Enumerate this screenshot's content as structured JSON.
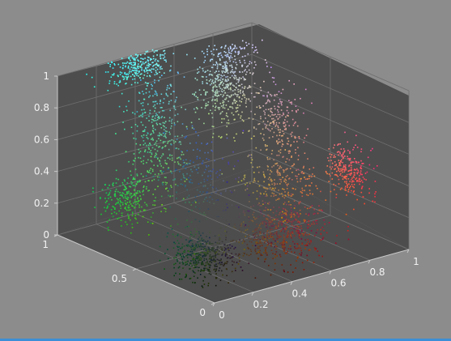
{
  "chart_data": {
    "type": "scatter",
    "title": "",
    "xlabel": "",
    "ylabel": "",
    "zlabel": "",
    "projection": "3d",
    "grid": true,
    "background_color": "#8c8c8c",
    "axes_color": "#4d4d4d",
    "xlim": [
      0,
      1
    ],
    "ylim": [
      0,
      1
    ],
    "zlim": [
      0,
      1
    ],
    "x_ticks": [
      {
        "value": 0,
        "label": "0"
      },
      {
        "value": 0.2,
        "label": "0.2"
      },
      {
        "value": 0.4,
        "label": "0.4"
      },
      {
        "value": 0.6,
        "label": "0.6"
      },
      {
        "value": 0.8,
        "label": "0.8"
      },
      {
        "value": 1,
        "label": "1"
      }
    ],
    "y_ticks": [
      {
        "value": 0,
        "label": "0"
      },
      {
        "value": 0.5,
        "label": "0.5"
      },
      {
        "value": 1,
        "label": "1"
      }
    ],
    "z_ticks": [
      {
        "value": 0,
        "label": "0"
      },
      {
        "value": 0.2,
        "label": "0.2"
      },
      {
        "value": 0.4,
        "label": "0.4"
      },
      {
        "value": 0.6,
        "label": "0.6"
      },
      {
        "value": 0.8,
        "label": "0.8"
      },
      {
        "value": 1,
        "label": "1"
      }
    ],
    "point_colors": "each point coloured by its own (x, y, z) = (r, g, b)",
    "clusters": [
      {
        "color": "#5ab4e6",
        "center": [
          0.38,
          0.95,
          0.95
        ],
        "spread": [
          0.08,
          0.04,
          0.05
        ],
        "points": 260
      },
      {
        "color": "#66b85a",
        "center": [
          0.35,
          0.8,
          0.6
        ],
        "spread": [
          0.06,
          0.05,
          0.2
        ],
        "points": 380
      },
      {
        "color": "#4aa840",
        "center": [
          0.18,
          0.78,
          0.28
        ],
        "spread": [
          0.06,
          0.04,
          0.07
        ],
        "points": 240
      },
      {
        "color": "#d9c8d4",
        "center": [
          0.72,
          0.82,
          0.8
        ],
        "spread": [
          0.07,
          0.04,
          0.14
        ],
        "points": 520
      },
      {
        "color": "#f0a080",
        "center": [
          0.83,
          0.62,
          0.6
        ],
        "spread": [
          0.05,
          0.06,
          0.12
        ],
        "points": 220
      },
      {
        "color": "#e89c4a",
        "center": [
          0.76,
          0.5,
          0.3
        ],
        "spread": [
          0.08,
          0.08,
          0.09
        ],
        "points": 260
      },
      {
        "color": "#e84550",
        "center": [
          0.97,
          0.35,
          0.35
        ],
        "spread": [
          0.03,
          0.06,
          0.08
        ],
        "points": 260
      },
      {
        "color": "#4a3aa0",
        "center": [
          0.25,
          0.4,
          0.5
        ],
        "spread": [
          0.06,
          0.1,
          0.15
        ],
        "points": 260
      },
      {
        "color": "#c04a30",
        "center": [
          0.5,
          0.22,
          0.18
        ],
        "spread": [
          0.1,
          0.08,
          0.08
        ],
        "points": 600
      },
      {
        "color": "#2e4a2e",
        "center": [
          0.12,
          0.22,
          0.16
        ],
        "spread": [
          0.06,
          0.07,
          0.06
        ],
        "points": 500
      }
    ]
  }
}
